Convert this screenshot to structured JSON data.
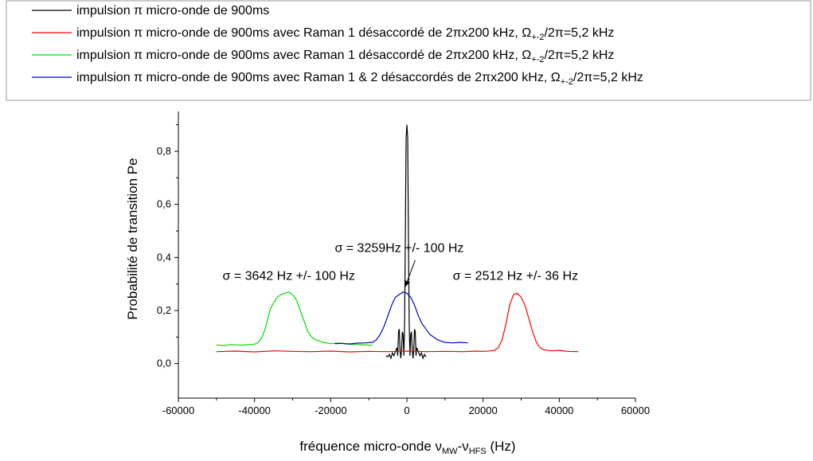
{
  "chart_data": {
    "type": "line",
    "xlabel": {
      "main": "fréquence micro-onde ",
      "nu1": "ν",
      "sub1": "MW",
      "dash": "-",
      "nu2": "ν",
      "sub2": "HFS",
      "unit": " (Hz)"
    },
    "ylabel": "Probabilité de transition  Pe",
    "xlim": [
      -60000,
      60000
    ],
    "ylim": [
      -0.13,
      0.95
    ],
    "x_ticks": [
      -60000,
      -40000,
      -20000,
      0,
      20000,
      40000,
      60000
    ],
    "x_tick_labels": [
      "-60000",
      "-40000",
      "-20000",
      "0",
      "20000",
      "40000",
      "60000"
    ],
    "y_ticks": [
      0,
      0.2,
      0.4,
      0.6,
      0.8
    ],
    "y_tick_labels": [
      "0,0",
      "0,2",
      "0,4",
      "0,6",
      "0,8"
    ],
    "grid": false,
    "legend_placement": "top",
    "legend": [
      {
        "color": "#000000",
        "prefix": "impulsion ",
        "pi": "π",
        "text": " micro-onde de 900ms",
        "omega": "",
        "omega_sub": "",
        "tail": ""
      },
      {
        "color": "#ff0000",
        "prefix": "impulsion ",
        "pi": "π",
        "text": " micro-onde de 900ms avec Raman 1 désaccordé de  2πx200 kHz, ",
        "omega": "Ω",
        "omega_sub": "+-2",
        "tail": "/2π=5,2 kHz"
      },
      {
        "color": "#00dd00",
        "prefix": "impulsion ",
        "pi": "π",
        "text": " micro-onde de 900ms avec Raman 1 désaccordé de  2πx200 kHz, ",
        "omega": "Ω",
        "omega_sub": "+-2",
        "tail": "/2π=5,2 kHz"
      },
      {
        "color": "#0000cc",
        "prefix": "impulsion ",
        "pi": "π",
        "text": " micro-onde de 900ms avec Raman 1 & 2 désaccordés de  2πx200 kHz, ",
        "omega": "Ω",
        "omega_sub": "+-2",
        "tail": "/2π=5,2 kHz"
      }
    ],
    "annotations": [
      {
        "text": "σ = 3642 Hz +/- 100 Hz",
        "x": -31000,
        "y": 0.315
      },
      {
        "text": "σ = 3259Hz +/- 100 Hz",
        "x": -2000,
        "y": 0.42,
        "arrow_to": [
          -500,
          0.27
        ]
      },
      {
        "text": "σ = 2512 Hz +/- 36 Hz",
        "x": 28500,
        "y": 0.315
      }
    ],
    "series": [
      {
        "color": "#000000",
        "x": [
          -5500,
          -5000,
          -4600,
          -4200,
          -3800,
          -3400,
          -3000,
          -2600,
          -2400,
          -2200,
          -2000,
          -1800,
          -1600,
          -1400,
          -1200,
          -1000,
          -800,
          -600,
          -400,
          -200,
          0,
          200,
          400,
          600,
          800,
          1000,
          1200,
          1400,
          1600,
          1800,
          2000,
          2200,
          2400,
          2600,
          3000,
          3400,
          3800,
          4200,
          4600,
          5000
        ],
        "y": [
          0.03,
          0.025,
          0.035,
          0.02,
          0.04,
          0.03,
          0.045,
          0.06,
          0.03,
          0.12,
          0.13,
          0.05,
          0.02,
          0.05,
          0.12,
          0.11,
          0.03,
          0.15,
          0.5,
          0.85,
          0.9,
          0.85,
          0.5,
          0.15,
          0.03,
          0.11,
          0.12,
          0.05,
          0.02,
          0.05,
          0.13,
          0.12,
          0.03,
          0.06,
          0.045,
          0.03,
          0.04,
          0.02,
          0.035,
          0.025
        ]
      },
      {
        "color": "#ff0000",
        "x": [
          -50000,
          -45000,
          -40000,
          -35000,
          -30000,
          -25000,
          -20000,
          -15000,
          -10000,
          -5000,
          0,
          5000,
          10000,
          15000,
          18000,
          20000,
          22000,
          23000,
          24000,
          25000,
          26000,
          27000,
          28000,
          29000,
          30000,
          31000,
          32000,
          33000,
          34000,
          35000,
          36000,
          38000,
          40000,
          42000,
          45000
        ],
        "y": [
          0.045,
          0.047,
          0.044,
          0.048,
          0.046,
          0.045,
          0.047,
          0.044,
          0.046,
          0.045,
          0.047,
          0.045,
          0.046,
          0.045,
          0.047,
          0.046,
          0.048,
          0.05,
          0.06,
          0.09,
          0.15,
          0.22,
          0.26,
          0.265,
          0.25,
          0.22,
          0.17,
          0.12,
          0.08,
          0.06,
          0.052,
          0.048,
          0.05,
          0.046,
          0.045
        ]
      },
      {
        "color": "#00dd00",
        "x": [
          -50000,
          -48000,
          -46000,
          -44000,
          -42000,
          -40000,
          -39000,
          -38000,
          -37000,
          -36000,
          -35000,
          -34000,
          -33000,
          -32000,
          -31000,
          -30000,
          -29000,
          -28000,
          -27000,
          -26000,
          -25000,
          -24000,
          -23000,
          -22000,
          -20000,
          -18000,
          -16000,
          -14000,
          -12000,
          -10000,
          -9000
        ],
        "y": [
          0.07,
          0.068,
          0.072,
          0.07,
          0.071,
          0.073,
          0.08,
          0.1,
          0.14,
          0.2,
          0.23,
          0.25,
          0.26,
          0.265,
          0.27,
          0.26,
          0.24,
          0.2,
          0.16,
          0.12,
          0.1,
          0.09,
          0.085,
          0.08,
          0.075,
          0.078,
          0.074,
          0.072,
          0.071,
          0.07,
          0.069
        ]
      },
      {
        "color": "#0000cc",
        "x": [
          -19000,
          -17000,
          -15000,
          -13000,
          -11000,
          -9000,
          -8000,
          -7000,
          -6000,
          -5000,
          -4000,
          -3000,
          -2000,
          -1000,
          0,
          1000,
          2000,
          3000,
          4000,
          5000,
          6000,
          7000,
          8000,
          9000,
          10000,
          12000,
          14000,
          16000
        ],
        "y": [
          0.075,
          0.076,
          0.074,
          0.077,
          0.078,
          0.08,
          0.09,
          0.11,
          0.14,
          0.18,
          0.22,
          0.25,
          0.26,
          0.27,
          0.265,
          0.25,
          0.22,
          0.18,
          0.15,
          0.13,
          0.11,
          0.1,
          0.09,
          0.085,
          0.08,
          0.078,
          0.08,
          0.078
        ]
      }
    ]
  }
}
